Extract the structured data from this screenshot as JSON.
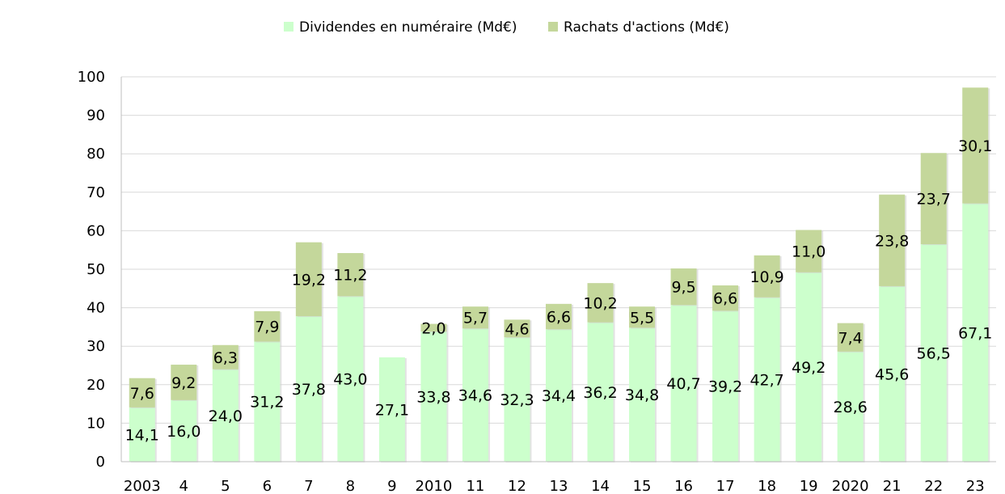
{
  "chart_data": {
    "type": "bar",
    "stacked": true,
    "categories": [
      "2003",
      "4",
      "5",
      "6",
      "7",
      "8",
      "9",
      "2010",
      "11",
      "12",
      "13",
      "14",
      "15",
      "16",
      "17",
      "18",
      "19",
      "2020",
      "21",
      "22",
      "23"
    ],
    "series": [
      {
        "name": "Dividendes en numéraire (Md€)",
        "color": "#ccffcc",
        "values": [
          14.1,
          16.0,
          24.0,
          31.2,
          37.8,
          43.0,
          27.1,
          33.8,
          34.6,
          32.3,
          34.4,
          36.2,
          34.8,
          40.7,
          39.2,
          42.7,
          49.2,
          28.6,
          45.6,
          56.5,
          67.1
        ],
        "labels": [
          "14,1",
          "16,0",
          "24,0",
          "31,2",
          "37,8",
          "43,0",
          "27,1",
          "33,8",
          "34,6",
          "32,3",
          "34,4",
          "36,2",
          "34,8",
          "40,7",
          "39,2",
          "42,7",
          "49,2",
          "28,6",
          "45,6",
          "56,5",
          "67,1"
        ]
      },
      {
        "name": "Rachats d'actions (Md€)",
        "color": "#c4d79b",
        "values": [
          7.6,
          9.2,
          6.3,
          7.9,
          19.2,
          11.2,
          0,
          2.0,
          5.7,
          4.6,
          6.6,
          10.2,
          5.5,
          9.5,
          6.6,
          10.9,
          11.0,
          7.4,
          23.8,
          23.7,
          30.1
        ],
        "labels": [
          "7,6",
          "9,2",
          "6,3",
          "7,9",
          "19,2",
          "11,2",
          "",
          "2,0",
          "5,7",
          "4,6",
          "6,6",
          "10,2",
          "5,5",
          "9,5",
          "6,6",
          "10,9",
          "11,0",
          "7,4",
          "23,8",
          "23,7",
          "30,1"
        ]
      }
    ],
    "ylim": [
      0,
      100
    ],
    "yticks": [
      "0",
      "10",
      "20",
      "30",
      "40",
      "50",
      "60",
      "70",
      "80",
      "90",
      "100"
    ],
    "grid": true,
    "legend_position": "top-center",
    "title": "",
    "xlabel": "",
    "ylabel": ""
  }
}
